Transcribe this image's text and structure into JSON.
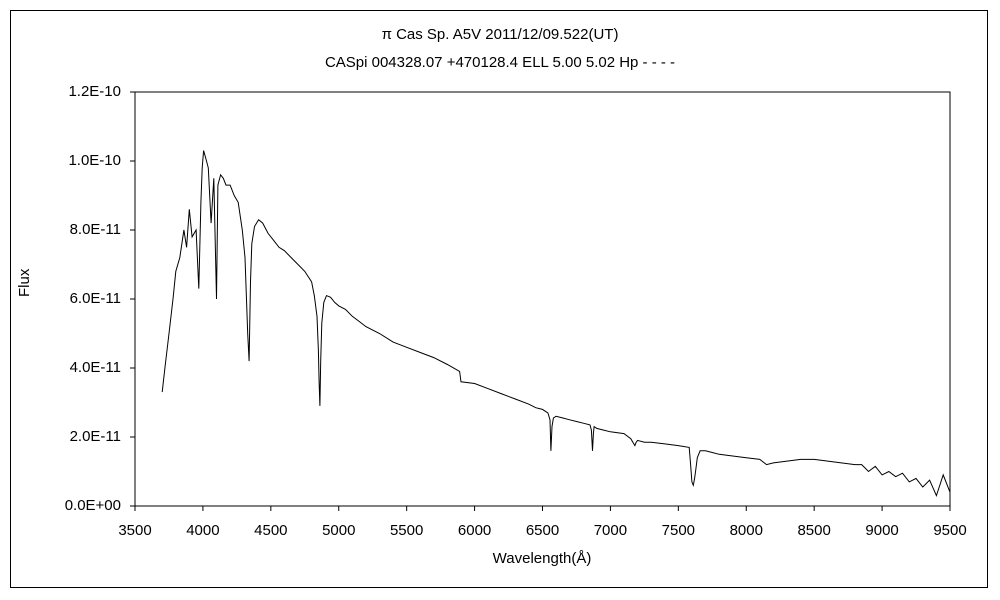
{
  "chart_data": {
    "type": "line",
    "title": "π Cas   Sp. A5V   2011/12/09.522(UT)",
    "subtitle": "CASpi 004328.07 +470128.4 ELL 5.00 5.02 Hp - - - -",
    "xlabel": "Wavelength(Å)",
    "ylabel": "Flux",
    "xlim": [
      3500,
      9500
    ],
    "ylim": [
      0,
      1.2e-10
    ],
    "grid": false,
    "x_ticks": [
      "3500",
      "4000",
      "4500",
      "5000",
      "5500",
      "6000",
      "6500",
      "7000",
      "7500",
      "8000",
      "8500",
      "9000",
      "9500"
    ],
    "y_ticks": [
      "0.0E+00",
      "2.0E-11",
      "4.0E-11",
      "6.0E-11",
      "8.0E-11",
      "1.0E-10",
      "1.2E-10"
    ],
    "series": [
      {
        "x": [
          3700,
          3720,
          3750,
          3780,
          3800,
          3830,
          3860,
          3880,
          3900,
          3920,
          3950,
          3970,
          3985,
          3995,
          4005,
          4020,
          4040,
          4060,
          4080,
          4100,
          4110,
          4130,
          4150,
          4170,
          4200,
          4230,
          4260,
          4290,
          4310,
          4330,
          4340,
          4350,
          4360,
          4380,
          4410,
          4440,
          4480,
          4520,
          4560,
          4600,
          4650,
          4700,
          4750,
          4800,
          4820,
          4840,
          4850,
          4855,
          4861,
          4867,
          4875,
          4890,
          4910,
          4940,
          4970,
          5000,
          5050,
          5100,
          5150,
          5200,
          5300,
          5400,
          5500,
          5600,
          5700,
          5800,
          5890,
          5900,
          6000,
          6100,
          6200,
          6300,
          6400,
          6450,
          6500,
          6540,
          6555,
          6562,
          6570,
          6580,
          6600,
          6650,
          6700,
          6750,
          6800,
          6850,
          6860,
          6868,
          6875,
          6880,
          6900,
          6950,
          7000,
          7100,
          7150,
          7180,
          7190,
          7200,
          7250,
          7300,
          7400,
          7500,
          7580,
          7590,
          7600,
          7610,
          7620,
          7630,
          7640,
          7660,
          7700,
          7750,
          7800,
          7900,
          8000,
          8100,
          8150,
          8200,
          8300,
          8400,
          8500,
          8600,
          8700,
          8800,
          8850,
          8900,
          8950,
          9000,
          9050,
          9100,
          9150,
          9200,
          9250,
          9300,
          9350,
          9400,
          9450,
          9500
        ],
        "y": [
          3.3e-11,
          4e-11,
          5e-11,
          6e-11,
          6.8e-11,
          7.2e-11,
          8e-11,
          7.5e-11,
          8.6e-11,
          7.8e-11,
          8e-11,
          6.3e-11,
          8.8e-11,
          9.8e-11,
          1.03e-10,
          1.01e-10,
          9.8e-11,
          8.2e-11,
          9.5e-11,
          6e-11,
          9.3e-11,
          9.6e-11,
          9.5e-11,
          9.3e-11,
          9.3e-11,
          9e-11,
          8.8e-11,
          8e-11,
          7.2e-11,
          5e-11,
          4.2e-11,
          6.5e-11,
          7.6e-11,
          8.1e-11,
          8.3e-11,
          8.2e-11,
          7.9e-11,
          7.7e-11,
          7.5e-11,
          7.4e-11,
          7.2e-11,
          7e-11,
          6.8e-11,
          6.5e-11,
          6.1e-11,
          5.5e-11,
          4.5e-11,
          3.6e-11,
          2.9e-11,
          4.2e-11,
          5.3e-11,
          5.9e-11,
          6.1e-11,
          6.05e-11,
          5.9e-11,
          5.8e-11,
          5.7e-11,
          5.5e-11,
          5.35e-11,
          5.2e-11,
          5e-11,
          4.75e-11,
          4.6e-11,
          4.45e-11,
          4.3e-11,
          4.1e-11,
          3.9e-11,
          3.6e-11,
          3.55e-11,
          3.4e-11,
          3.25e-11,
          3.1e-11,
          2.95e-11,
          2.85e-11,
          2.8e-11,
          2.7e-11,
          2.5e-11,
          1.6e-11,
          2.3e-11,
          2.55e-11,
          2.6e-11,
          2.55e-11,
          2.5e-11,
          2.45e-11,
          2.4e-11,
          2.35e-11,
          2.2e-11,
          1.6e-11,
          2.1e-11,
          2.3e-11,
          2.25e-11,
          2.2e-11,
          2.15e-11,
          2.1e-11,
          1.95e-11,
          1.75e-11,
          1.85e-11,
          1.9e-11,
          1.85e-11,
          1.85e-11,
          1.8e-11,
          1.75e-11,
          1.7e-11,
          1.2e-11,
          7e-12,
          6e-12,
          8e-12,
          1.1e-11,
          1.4e-11,
          1.6e-11,
          1.6e-11,
          1.55e-11,
          1.5e-11,
          1.45e-11,
          1.4e-11,
          1.35e-11,
          1.2e-11,
          1.25e-11,
          1.3e-11,
          1.35e-11,
          1.35e-11,
          1.3e-11,
          1.25e-11,
          1.2e-11,
          1.2e-11,
          1e-11,
          1.15e-11,
          9e-12,
          1e-11,
          8.5e-12,
          9.5e-12,
          7e-12,
          8e-12,
          5.5e-12,
          7.5e-12,
          3e-12,
          9e-12,
          4e-12
        ]
      }
    ]
  }
}
